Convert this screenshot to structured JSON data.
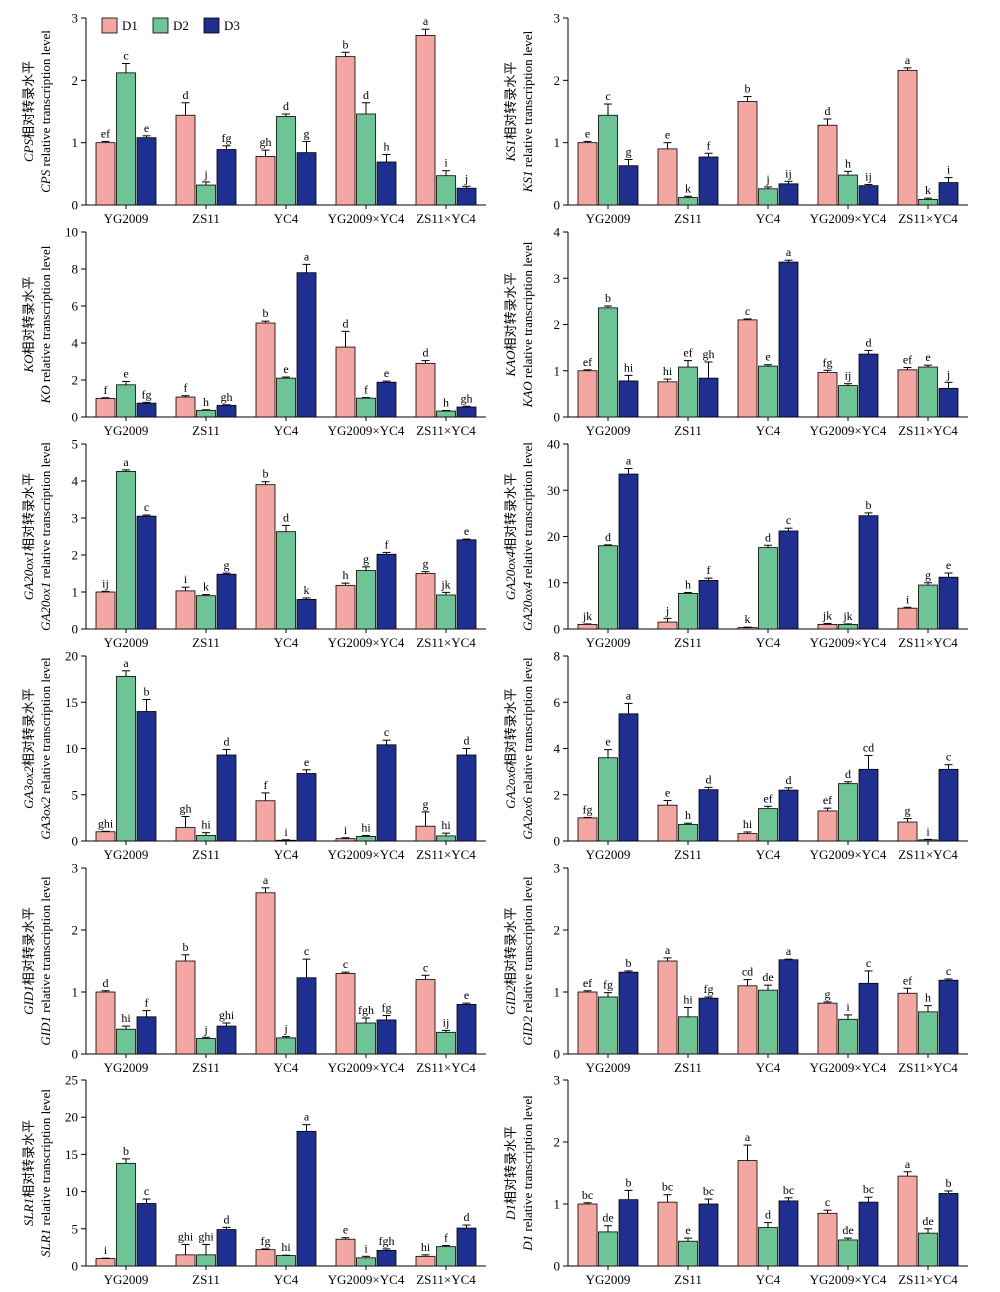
{
  "categories": [
    "YG2009",
    "ZS11",
    "YC4",
    "YG2009×YC4",
    "ZS11×YC4"
  ],
  "legend": [
    {
      "name": "D1",
      "color": "#F4A6A0"
    },
    {
      "name": "D2",
      "color": "#6DC495"
    },
    {
      "name": "D3",
      "color": "#1F2F8F"
    }
  ],
  "chart_data": [
    {
      "type": "bar",
      "gene": "CPS",
      "ylabel_cn": "相对转录水平",
      "ylabel_en": " relative transcription level",
      "ylim": [
        0,
        3
      ],
      "yticks": [
        0,
        1,
        2,
        3
      ],
      "series": [
        {
          "name": "D1",
          "values": [
            1.0,
            1.44,
            0.78,
            2.38,
            2.72
          ],
          "errors": [
            0.02,
            0.2,
            0.1,
            0.07,
            0.1
          ],
          "letters": [
            "ef",
            "d",
            "gh",
            "b",
            "a"
          ]
        },
        {
          "name": "D2",
          "values": [
            2.12,
            0.32,
            1.42,
            1.46,
            0.47
          ],
          "errors": [
            0.15,
            0.05,
            0.04,
            0.18,
            0.08
          ],
          "letters": [
            "c",
            "j",
            "d",
            "d",
            "i"
          ]
        },
        {
          "name": "D3",
          "values": [
            1.08,
            0.89,
            0.84,
            0.69,
            0.27
          ],
          "errors": [
            0.03,
            0.06,
            0.18,
            0.12,
            0.03
          ],
          "letters": [
            "e",
            "fg",
            "g",
            "h",
            "j"
          ]
        }
      ]
    },
    {
      "type": "bar",
      "gene": "KS1",
      "ylabel_cn": "相对转录水平",
      "ylabel_en": " relative transcription level",
      "ylim": [
        0,
        3
      ],
      "yticks": [
        0,
        1,
        2,
        3
      ],
      "series": [
        {
          "name": "D1",
          "values": [
            1.0,
            0.9,
            1.66,
            1.28,
            2.16
          ],
          "errors": [
            0.02,
            0.1,
            0.08,
            0.1,
            0.04
          ],
          "letters": [
            "e",
            "e",
            "b",
            "d",
            "a"
          ]
        },
        {
          "name": "D2",
          "values": [
            1.44,
            0.12,
            0.26,
            0.48,
            0.09
          ],
          "errors": [
            0.18,
            0.02,
            0.03,
            0.06,
            0.02
          ],
          "letters": [
            "c",
            "k",
            "j",
            "h",
            "k"
          ]
        },
        {
          "name": "D3",
          "values": [
            0.63,
            0.77,
            0.34,
            0.31,
            0.36
          ],
          "errors": [
            0.1,
            0.06,
            0.04,
            0.02,
            0.08
          ],
          "letters": [
            "g",
            "f",
            "ij",
            "ij",
            "i"
          ]
        }
      ]
    },
    {
      "type": "bar",
      "gene": "KO",
      "ylabel_cn": "相对转录水平",
      "ylabel_en": " relative transcription level",
      "ylim": [
        0,
        10
      ],
      "yticks": [
        0,
        2,
        4,
        6,
        8,
        10
      ],
      "series": [
        {
          "name": "D1",
          "values": [
            1.0,
            1.08,
            5.08,
            3.78,
            2.9
          ],
          "errors": [
            0.04,
            0.07,
            0.1,
            0.85,
            0.15
          ],
          "letters": [
            "f",
            "f",
            "b",
            "d",
            "d"
          ]
        },
        {
          "name": "D2",
          "values": [
            1.74,
            0.36,
            2.1,
            1.02,
            0.32
          ],
          "errors": [
            0.18,
            0.03,
            0.06,
            0.03,
            0.03
          ],
          "letters": [
            "e",
            "h",
            "e",
            "f",
            "h"
          ]
        },
        {
          "name": "D3",
          "values": [
            0.75,
            0.63,
            7.8,
            1.88,
            0.54
          ],
          "errors": [
            0.04,
            0.03,
            0.45,
            0.06,
            0.04
          ],
          "letters": [
            "fg",
            "gh",
            "a",
            "e",
            "gh"
          ]
        }
      ]
    },
    {
      "type": "bar",
      "gene": "KAO",
      "ylabel_cn": "相对转录水平",
      "ylabel_en": " relative transcription level",
      "ylim": [
        0,
        4
      ],
      "yticks": [
        0,
        1,
        2,
        3,
        4
      ],
      "series": [
        {
          "name": "D1",
          "values": [
            1.0,
            0.76,
            2.1,
            0.96,
            1.02
          ],
          "errors": [
            0.02,
            0.06,
            0.02,
            0.05,
            0.05
          ],
          "letters": [
            "ef",
            "hi",
            "c",
            "fg",
            "ef"
          ]
        },
        {
          "name": "D2",
          "values": [
            2.36,
            1.08,
            1.1,
            0.68,
            1.08
          ],
          "errors": [
            0.04,
            0.14,
            0.03,
            0.04,
            0.04
          ],
          "letters": [
            "b",
            "ef",
            "e",
            "ij",
            "e"
          ]
        },
        {
          "name": "D3",
          "values": [
            0.78,
            0.84,
            3.35,
            1.36,
            0.62
          ],
          "errors": [
            0.12,
            0.35,
            0.04,
            0.08,
            0.13
          ],
          "letters": [
            "hi",
            "gh",
            "a",
            "d",
            "j"
          ]
        }
      ]
    },
    {
      "type": "bar",
      "gene": "GA20ox1",
      "ylabel_cn": "相对转录水平",
      "ylabel_en": " relative transcription level",
      "ylim": [
        0,
        5
      ],
      "yticks": [
        0,
        1,
        2,
        3,
        4,
        5
      ],
      "series": [
        {
          "name": "D1",
          "values": [
            1.0,
            1.03,
            3.9,
            1.18,
            1.5
          ],
          "errors": [
            0.02,
            0.1,
            0.08,
            0.06,
            0.05
          ],
          "letters": [
            "ij",
            "i",
            "b",
            "h",
            "g"
          ]
        },
        {
          "name": "D2",
          "values": [
            4.26,
            0.9,
            2.63,
            1.58,
            0.92
          ],
          "errors": [
            0.04,
            0.03,
            0.17,
            0.1,
            0.07
          ],
          "letters": [
            "a",
            "k",
            "d",
            "g",
            "jk"
          ]
        },
        {
          "name": "D3",
          "values": [
            3.05,
            1.48,
            0.8,
            2.02,
            2.41
          ],
          "errors": [
            0.03,
            0.03,
            0.04,
            0.05,
            0.02
          ],
          "letters": [
            "c",
            "g",
            "k",
            "f",
            "e"
          ]
        }
      ]
    },
    {
      "type": "bar",
      "gene": "GA20ox4",
      "ylabel_cn": "相对转录水平",
      "ylabel_en": " relative transcription level",
      "ylim": [
        0,
        40
      ],
      "yticks": [
        0,
        10,
        20,
        30,
        40
      ],
      "series": [
        {
          "name": "D1",
          "values": [
            1.0,
            1.5,
            0.3,
            1.0,
            4.5
          ],
          "errors": [
            0.1,
            0.8,
            0.1,
            0.2,
            0.2
          ],
          "letters": [
            "jk",
            "j",
            "k",
            "jk",
            "i"
          ]
        },
        {
          "name": "D2",
          "values": [
            18.0,
            7.7,
            17.6,
            1.0,
            9.5
          ],
          "errors": [
            0.2,
            0.2,
            0.5,
            0.1,
            0.5
          ],
          "letters": [
            "d",
            "h",
            "d",
            "jk",
            "g"
          ]
        },
        {
          "name": "D3",
          "values": [
            33.5,
            10.5,
            21.2,
            24.5,
            11.2
          ],
          "errors": [
            1.2,
            0.5,
            0.6,
            0.6,
            0.9
          ],
          "letters": [
            "a",
            "f",
            "c",
            "b",
            "e"
          ]
        }
      ]
    },
    {
      "type": "bar",
      "gene": "GA3ox2",
      "ylabel_cn": "相对转录水平",
      "ylabel_en": " relative transcription level",
      "ylim": [
        0,
        20
      ],
      "yticks": [
        0,
        5,
        10,
        15,
        20
      ],
      "series": [
        {
          "name": "D1",
          "values": [
            1.0,
            1.45,
            4.35,
            0.25,
            1.6
          ],
          "errors": [
            0.05,
            1.2,
            0.85,
            0.1,
            1.55
          ],
          "letters": [
            "ghi",
            "gh",
            "f",
            "i",
            "g"
          ]
        },
        {
          "name": "D2",
          "values": [
            17.8,
            0.6,
            0.08,
            0.5,
            0.55
          ],
          "errors": [
            0.6,
            0.3,
            0.05,
            0.1,
            0.3
          ],
          "letters": [
            "a",
            "hi",
            "i",
            "hi",
            "hi"
          ]
        },
        {
          "name": "D3",
          "values": [
            14.0,
            9.3,
            7.3,
            10.4,
            9.3
          ],
          "errors": [
            1.3,
            0.6,
            0.4,
            0.5,
            0.7
          ],
          "letters": [
            "b",
            "d",
            "e",
            "c",
            "d"
          ]
        }
      ]
    },
    {
      "type": "bar",
      "gene": "GA2ox6",
      "ylabel_cn": "相对转录水平",
      "ylabel_en": " relative transcription level",
      "ylim": [
        0,
        8
      ],
      "yticks": [
        0,
        2,
        4,
        6,
        8
      ],
      "series": [
        {
          "name": "D1",
          "values": [
            1.0,
            1.55,
            0.32,
            1.3,
            0.82
          ],
          "errors": [
            0.02,
            0.2,
            0.07,
            0.12,
            0.15
          ],
          "letters": [
            "fg",
            "e",
            "hi",
            "ef",
            "g"
          ]
        },
        {
          "name": "D2",
          "values": [
            3.6,
            0.72,
            1.4,
            2.48,
            0.05
          ],
          "errors": [
            0.35,
            0.05,
            0.1,
            0.08,
            0.02
          ],
          "letters": [
            "e",
            "h",
            "ef",
            "d",
            "i"
          ]
        },
        {
          "name": "D3",
          "values": [
            5.5,
            2.22,
            2.2,
            3.1,
            3.1
          ],
          "errors": [
            0.45,
            0.1,
            0.1,
            0.6,
            0.2
          ],
          "letters": [
            "a",
            "d",
            "d",
            "cd",
            "c"
          ]
        }
      ]
    },
    {
      "type": "bar",
      "gene": "GID1",
      "ylabel_cn": "相对转录水平",
      "ylabel_en": " relative transcription level",
      "ylim": [
        0,
        3
      ],
      "yticks": [
        0,
        1,
        2,
        3
      ],
      "series": [
        {
          "name": "D1",
          "values": [
            1.0,
            1.5,
            2.6,
            1.3,
            1.2
          ],
          "errors": [
            0.02,
            0.1,
            0.08,
            0.02,
            0.07
          ],
          "letters": [
            "d",
            "b",
            "a",
            "c",
            "c"
          ]
        },
        {
          "name": "D2",
          "values": [
            0.4,
            0.25,
            0.26,
            0.5,
            0.35
          ],
          "errors": [
            0.05,
            0.02,
            0.02,
            0.08,
            0.03
          ],
          "letters": [
            "hi",
            "j",
            "j",
            "fgh",
            "ij"
          ]
        },
        {
          "name": "D3",
          "values": [
            0.6,
            0.45,
            1.23,
            0.55,
            0.8
          ],
          "errors": [
            0.1,
            0.05,
            0.3,
            0.07,
            0.02
          ],
          "letters": [
            "f",
            "ghi",
            "c",
            "fg",
            "e"
          ]
        }
      ]
    },
    {
      "type": "bar",
      "gene": "GID2",
      "ylabel_cn": "相对转录水平",
      "ylabel_en": " relative transcription level",
      "ylim": [
        0,
        3
      ],
      "yticks": [
        0,
        1,
        2,
        3
      ],
      "series": [
        {
          "name": "D1",
          "values": [
            1.0,
            1.5,
            1.1,
            0.82,
            0.98
          ],
          "errors": [
            0.02,
            0.05,
            0.1,
            0.02,
            0.08
          ],
          "letters": [
            "ef",
            "a",
            "cd",
            "g",
            "ef"
          ]
        },
        {
          "name": "D2",
          "values": [
            0.92,
            0.6,
            1.03,
            0.56,
            0.68
          ],
          "errors": [
            0.07,
            0.15,
            0.08,
            0.07,
            0.1
          ],
          "letters": [
            "fg",
            "hi",
            "de",
            "i",
            "h"
          ]
        },
        {
          "name": "D3",
          "values": [
            1.32,
            0.9,
            1.52,
            1.14,
            1.19
          ],
          "errors": [
            0.02,
            0.02,
            0.01,
            0.2,
            0.02
          ],
          "letters": [
            "b",
            "fg",
            "a",
            "c",
            "c"
          ]
        }
      ]
    },
    {
      "type": "bar",
      "gene": "SLR1",
      "ylabel_cn": "相对转录水平",
      "ylabel_en": " relative transcription level",
      "ylim": [
        0,
        25
      ],
      "yticks": [
        0,
        5,
        10,
        15,
        20,
        25
      ],
      "series": [
        {
          "name": "D1",
          "values": [
            1.0,
            1.5,
            2.2,
            3.6,
            1.3
          ],
          "errors": [
            0.05,
            1.4,
            0.1,
            0.2,
            0.2
          ],
          "letters": [
            "i",
            "ghi",
            "fg",
            "e",
            "hi"
          ]
        },
        {
          "name": "D2",
          "values": [
            13.8,
            1.5,
            1.4,
            1.1,
            2.6
          ],
          "errors": [
            0.6,
            1.4,
            0.05,
            0.2,
            0.15
          ],
          "letters": [
            "b",
            "ghi",
            "hi",
            "i",
            "f"
          ]
        },
        {
          "name": "D3",
          "values": [
            8.4,
            4.9,
            18.1,
            2.1,
            5.1
          ],
          "errors": [
            0.6,
            0.3,
            0.9,
            0.2,
            0.4
          ],
          "letters": [
            "c",
            "d",
            "a",
            "fgh",
            "d"
          ]
        }
      ]
    },
    {
      "type": "bar",
      "gene": "D1",
      "ylabel_cn": "相对转录水平",
      "ylabel_en": " relative transcription level",
      "ylim": [
        0,
        3
      ],
      "yticks": [
        0,
        1,
        2,
        3
      ],
      "series": [
        {
          "name": "D1",
          "values": [
            1.0,
            1.03,
            1.7,
            0.85,
            1.45
          ],
          "errors": [
            0.02,
            0.12,
            0.25,
            0.05,
            0.07
          ],
          "letters": [
            "bc",
            "bc",
            "a",
            "c",
            "a"
          ]
        },
        {
          "name": "D2",
          "values": [
            0.55,
            0.4,
            0.62,
            0.42,
            0.53
          ],
          "errors": [
            0.1,
            0.05,
            0.08,
            0.03,
            0.07
          ],
          "letters": [
            "de",
            "e",
            "d",
            "de",
            "de"
          ]
        },
        {
          "name": "D3",
          "values": [
            1.07,
            1.0,
            1.05,
            1.03,
            1.17
          ],
          "errors": [
            0.15,
            0.08,
            0.05,
            0.08,
            0.04
          ],
          "letters": [
            "b",
            "bc",
            "bc",
            "bc",
            "b"
          ]
        }
      ]
    }
  ]
}
